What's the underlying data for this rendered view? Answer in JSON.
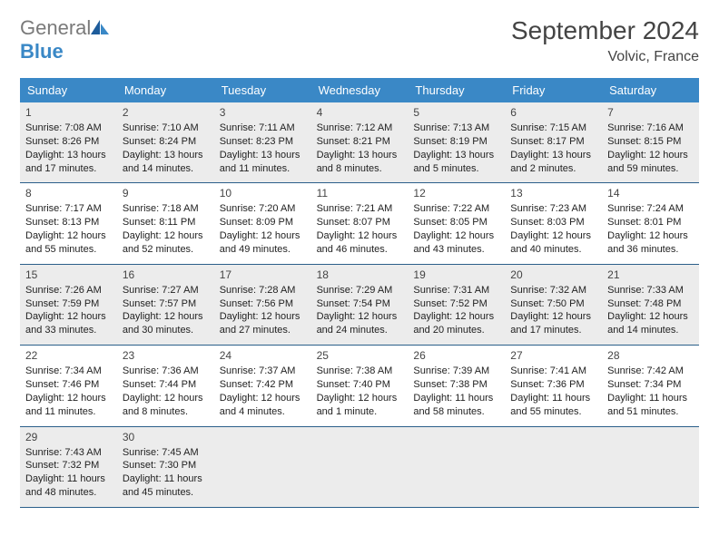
{
  "brand": {
    "general": "General",
    "blue": "Blue"
  },
  "header": {
    "title": "September 2024",
    "location": "Volvic, France"
  },
  "colors": {
    "header_bar": "#3a88c6",
    "row_divider": "#2b5f8a",
    "shaded_bg": "#ececec",
    "text": "#222222",
    "muted": "#7a7a7a"
  },
  "dow": [
    "Sunday",
    "Monday",
    "Tuesday",
    "Wednesday",
    "Thursday",
    "Friday",
    "Saturday"
  ],
  "weeks": [
    {
      "shaded": true,
      "days": [
        {
          "num": "1",
          "sunrise": "Sunrise: 7:08 AM",
          "sunset": "Sunset: 8:26 PM",
          "day1": "Daylight: 13 hours",
          "day2": "and 17 minutes."
        },
        {
          "num": "2",
          "sunrise": "Sunrise: 7:10 AM",
          "sunset": "Sunset: 8:24 PM",
          "day1": "Daylight: 13 hours",
          "day2": "and 14 minutes."
        },
        {
          "num": "3",
          "sunrise": "Sunrise: 7:11 AM",
          "sunset": "Sunset: 8:23 PM",
          "day1": "Daylight: 13 hours",
          "day2": "and 11 minutes."
        },
        {
          "num": "4",
          "sunrise": "Sunrise: 7:12 AM",
          "sunset": "Sunset: 8:21 PM",
          "day1": "Daylight: 13 hours",
          "day2": "and 8 minutes."
        },
        {
          "num": "5",
          "sunrise": "Sunrise: 7:13 AM",
          "sunset": "Sunset: 8:19 PM",
          "day1": "Daylight: 13 hours",
          "day2": "and 5 minutes."
        },
        {
          "num": "6",
          "sunrise": "Sunrise: 7:15 AM",
          "sunset": "Sunset: 8:17 PM",
          "day1": "Daylight: 13 hours",
          "day2": "and 2 minutes."
        },
        {
          "num": "7",
          "sunrise": "Sunrise: 7:16 AM",
          "sunset": "Sunset: 8:15 PM",
          "day1": "Daylight: 12 hours",
          "day2": "and 59 minutes."
        }
      ]
    },
    {
      "shaded": false,
      "days": [
        {
          "num": "8",
          "sunrise": "Sunrise: 7:17 AM",
          "sunset": "Sunset: 8:13 PM",
          "day1": "Daylight: 12 hours",
          "day2": "and 55 minutes."
        },
        {
          "num": "9",
          "sunrise": "Sunrise: 7:18 AM",
          "sunset": "Sunset: 8:11 PM",
          "day1": "Daylight: 12 hours",
          "day2": "and 52 minutes."
        },
        {
          "num": "10",
          "sunrise": "Sunrise: 7:20 AM",
          "sunset": "Sunset: 8:09 PM",
          "day1": "Daylight: 12 hours",
          "day2": "and 49 minutes."
        },
        {
          "num": "11",
          "sunrise": "Sunrise: 7:21 AM",
          "sunset": "Sunset: 8:07 PM",
          "day1": "Daylight: 12 hours",
          "day2": "and 46 minutes."
        },
        {
          "num": "12",
          "sunrise": "Sunrise: 7:22 AM",
          "sunset": "Sunset: 8:05 PM",
          "day1": "Daylight: 12 hours",
          "day2": "and 43 minutes."
        },
        {
          "num": "13",
          "sunrise": "Sunrise: 7:23 AM",
          "sunset": "Sunset: 8:03 PM",
          "day1": "Daylight: 12 hours",
          "day2": "and 40 minutes."
        },
        {
          "num": "14",
          "sunrise": "Sunrise: 7:24 AM",
          "sunset": "Sunset: 8:01 PM",
          "day1": "Daylight: 12 hours",
          "day2": "and 36 minutes."
        }
      ]
    },
    {
      "shaded": true,
      "days": [
        {
          "num": "15",
          "sunrise": "Sunrise: 7:26 AM",
          "sunset": "Sunset: 7:59 PM",
          "day1": "Daylight: 12 hours",
          "day2": "and 33 minutes."
        },
        {
          "num": "16",
          "sunrise": "Sunrise: 7:27 AM",
          "sunset": "Sunset: 7:57 PM",
          "day1": "Daylight: 12 hours",
          "day2": "and 30 minutes."
        },
        {
          "num": "17",
          "sunrise": "Sunrise: 7:28 AM",
          "sunset": "Sunset: 7:56 PM",
          "day1": "Daylight: 12 hours",
          "day2": "and 27 minutes."
        },
        {
          "num": "18",
          "sunrise": "Sunrise: 7:29 AM",
          "sunset": "Sunset: 7:54 PM",
          "day1": "Daylight: 12 hours",
          "day2": "and 24 minutes."
        },
        {
          "num": "19",
          "sunrise": "Sunrise: 7:31 AM",
          "sunset": "Sunset: 7:52 PM",
          "day1": "Daylight: 12 hours",
          "day2": "and 20 minutes."
        },
        {
          "num": "20",
          "sunrise": "Sunrise: 7:32 AM",
          "sunset": "Sunset: 7:50 PM",
          "day1": "Daylight: 12 hours",
          "day2": "and 17 minutes."
        },
        {
          "num": "21",
          "sunrise": "Sunrise: 7:33 AM",
          "sunset": "Sunset: 7:48 PM",
          "day1": "Daylight: 12 hours",
          "day2": "and 14 minutes."
        }
      ]
    },
    {
      "shaded": false,
      "days": [
        {
          "num": "22",
          "sunrise": "Sunrise: 7:34 AM",
          "sunset": "Sunset: 7:46 PM",
          "day1": "Daylight: 12 hours",
          "day2": "and 11 minutes."
        },
        {
          "num": "23",
          "sunrise": "Sunrise: 7:36 AM",
          "sunset": "Sunset: 7:44 PM",
          "day1": "Daylight: 12 hours",
          "day2": "and 8 minutes."
        },
        {
          "num": "24",
          "sunrise": "Sunrise: 7:37 AM",
          "sunset": "Sunset: 7:42 PM",
          "day1": "Daylight: 12 hours",
          "day2": "and 4 minutes."
        },
        {
          "num": "25",
          "sunrise": "Sunrise: 7:38 AM",
          "sunset": "Sunset: 7:40 PM",
          "day1": "Daylight: 12 hours",
          "day2": "and 1 minute."
        },
        {
          "num": "26",
          "sunrise": "Sunrise: 7:39 AM",
          "sunset": "Sunset: 7:38 PM",
          "day1": "Daylight: 11 hours",
          "day2": "and 58 minutes."
        },
        {
          "num": "27",
          "sunrise": "Sunrise: 7:41 AM",
          "sunset": "Sunset: 7:36 PM",
          "day1": "Daylight: 11 hours",
          "day2": "and 55 minutes."
        },
        {
          "num": "28",
          "sunrise": "Sunrise: 7:42 AM",
          "sunset": "Sunset: 7:34 PM",
          "day1": "Daylight: 11 hours",
          "day2": "and 51 minutes."
        }
      ]
    },
    {
      "shaded": true,
      "days": [
        {
          "num": "29",
          "sunrise": "Sunrise: 7:43 AM",
          "sunset": "Sunset: 7:32 PM",
          "day1": "Daylight: 11 hours",
          "day2": "and 48 minutes."
        },
        {
          "num": "30",
          "sunrise": "Sunrise: 7:45 AM",
          "sunset": "Sunset: 7:30 PM",
          "day1": "Daylight: 11 hours",
          "day2": "and 45 minutes."
        },
        {
          "num": "",
          "sunrise": "",
          "sunset": "",
          "day1": "",
          "day2": ""
        },
        {
          "num": "",
          "sunrise": "",
          "sunset": "",
          "day1": "",
          "day2": ""
        },
        {
          "num": "",
          "sunrise": "",
          "sunset": "",
          "day1": "",
          "day2": ""
        },
        {
          "num": "",
          "sunrise": "",
          "sunset": "",
          "day1": "",
          "day2": ""
        },
        {
          "num": "",
          "sunrise": "",
          "sunset": "",
          "day1": "",
          "day2": ""
        }
      ]
    }
  ]
}
